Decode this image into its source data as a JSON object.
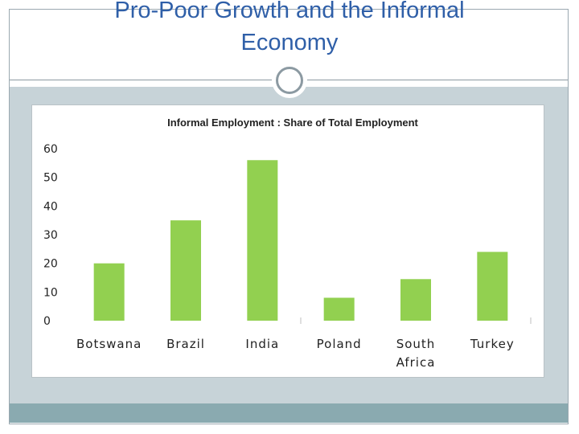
{
  "slide": {
    "title_line1": "Pro-Poor Growth and the Informal",
    "title_line2": "Economy",
    "title_color": "#2f5fa8",
    "band_color": "#c7d3d8",
    "footer_color": "#8aaab0"
  },
  "chart_data": {
    "type": "bar",
    "title": "Informal Employment : Share of Total Employment",
    "categories": [
      [
        "Botswana"
      ],
      [
        "Brazil"
      ],
      [
        "India"
      ],
      [
        "Poland"
      ],
      [
        "South",
        "Africa"
      ],
      [
        "Turkey"
      ]
    ],
    "values": [
      20,
      35,
      56,
      8,
      14.5,
      24
    ],
    "ylim": [
      0,
      60
    ],
    "yticks": [
      0,
      10,
      20,
      30,
      40,
      50,
      60
    ],
    "xlabel": "",
    "ylabel": "",
    "grid": false,
    "legend": "none",
    "bar_color": "#92d050"
  }
}
